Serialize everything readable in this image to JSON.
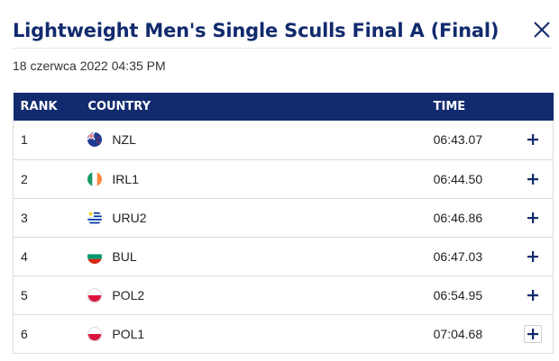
{
  "dialog": {
    "title": "Lightweight Men's Single Sculls Final A (Final)",
    "close_icon": "close-icon",
    "date": "18 czerwca 2022 04:35 PM"
  },
  "table": {
    "headers": {
      "rank": "RANK",
      "country": "COUNTRY",
      "time": "TIME"
    },
    "rows": [
      {
        "rank": "1",
        "country": "NZL",
        "flag": "flag-nzl-icon",
        "time": "06:43.07"
      },
      {
        "rank": "2",
        "country": "IRL1",
        "flag": "flag-irl-icon",
        "time": "06:44.50"
      },
      {
        "rank": "3",
        "country": "URU2",
        "flag": "flag-uru-icon",
        "time": "06:46.86"
      },
      {
        "rank": "4",
        "country": "BUL",
        "flag": "flag-bul-icon",
        "time": "06:47.03"
      },
      {
        "rank": "5",
        "country": "POL2",
        "flag": "flag-pol-icon",
        "time": "06:54.95"
      },
      {
        "rank": "6",
        "country": "POL1",
        "flag": "flag-pol-icon",
        "time": "07:04.68"
      }
    ],
    "expand_icon": "plus-icon"
  },
  "colors": {
    "brand": "#122b6e",
    "header_bg": "#122b6e",
    "header_text": "#ffffff"
  }
}
